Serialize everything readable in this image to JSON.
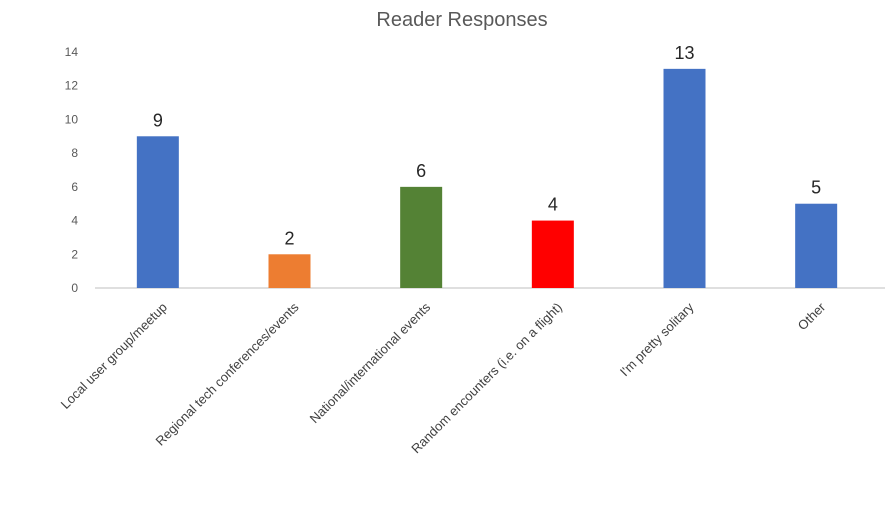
{
  "chart_data": {
    "type": "bar",
    "title": "Reader Responses",
    "categories": [
      "Local user group/meetup",
      "Regional tech conferences/events",
      "National/international events",
      "Random encounters (i.e. on a flight)",
      "I'm pretty solitary",
      "Other"
    ],
    "values": [
      9,
      2,
      6,
      4,
      13,
      5
    ],
    "colors": [
      "#4472C4",
      "#ED7D31",
      "#548235",
      "#FF0000",
      "#4472C4",
      "#4472C4"
    ],
    "ylim": [
      0,
      14
    ],
    "yticks": [
      0,
      2,
      4,
      6,
      8,
      10,
      12,
      14
    ],
    "grid": false,
    "legend": "none",
    "data_labels": true,
    "xlabel": "",
    "ylabel": ""
  }
}
